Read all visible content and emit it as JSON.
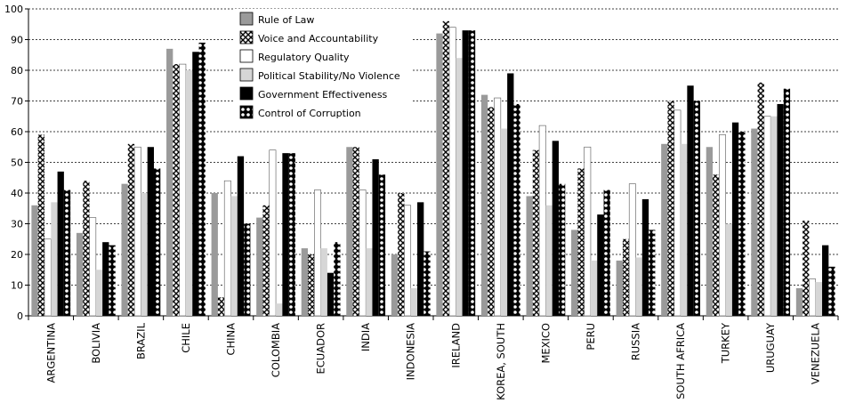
{
  "chart_data": {
    "type": "bar",
    "title": "",
    "xlabel": "",
    "ylabel": "",
    "ylim": [
      0,
      100
    ],
    "yticks": [
      0,
      10,
      20,
      30,
      40,
      50,
      60,
      70,
      80,
      90,
      100
    ],
    "grid": "horizontal dashed",
    "legend_placement": "top-center",
    "categories": [
      "ARGENTINA",
      "BOLIVIA",
      "BRAZIL",
      "CHILE",
      "CHINA",
      "COLOMBIA",
      "ECUADOR",
      "INDIA",
      "INDONESIA",
      "IRELAND",
      "KOREA, SOUTH",
      "MEXICO",
      "PERU",
      "RUSSIA",
      "SOUTH AFRICA",
      "TURKEY",
      "URUGUAY",
      "VENEZUELA"
    ],
    "series": [
      {
        "name": "Rule of Law",
        "color": "#9a9a9a",
        "pattern": "solid",
        "values": [
          36,
          27,
          43,
          87,
          40,
          32,
          22,
          55,
          20,
          92,
          72,
          39,
          28,
          18,
          56,
          55,
          61,
          9
        ]
      },
      {
        "name": "Voice and Accountability",
        "color": "#000000",
        "pattern": "cross",
        "values": [
          59,
          44,
          56,
          82,
          6,
          36,
          20,
          55,
          40,
          96,
          68,
          54,
          48,
          25,
          70,
          46,
          76,
          31
        ]
      },
      {
        "name": "Regulatory Quality",
        "color": "#ffffff",
        "pattern": "white",
        "values": [
          25,
          32,
          55,
          82,
          44,
          54,
          41,
          41,
          36,
          94,
          71,
          62,
          55,
          43,
          67,
          59,
          65,
          12
        ]
      },
      {
        "name": "Political Stability/No Violence",
        "color": "#d6d6d6",
        "pattern": "light",
        "values": [
          37,
          15,
          40,
          80,
          39,
          4,
          22,
          22,
          9,
          84,
          61,
          36,
          18,
          19,
          56,
          30,
          65,
          11
        ]
      },
      {
        "name": "Government Effectiveness",
        "color": "#000000",
        "pattern": "black",
        "values": [
          47,
          24,
          55,
          86,
          52,
          53,
          14,
          51,
          37,
          93,
          79,
          57,
          33,
          38,
          75,
          63,
          69,
          23
        ]
      },
      {
        "name": "Control of Corruption",
        "color": "#000000",
        "pattern": "dots",
        "values": [
          41,
          23,
          48,
          89,
          30,
          53,
          24,
          46,
          21,
          93,
          69,
          43,
          41,
          28,
          70,
          60,
          74,
          16
        ]
      }
    ]
  }
}
